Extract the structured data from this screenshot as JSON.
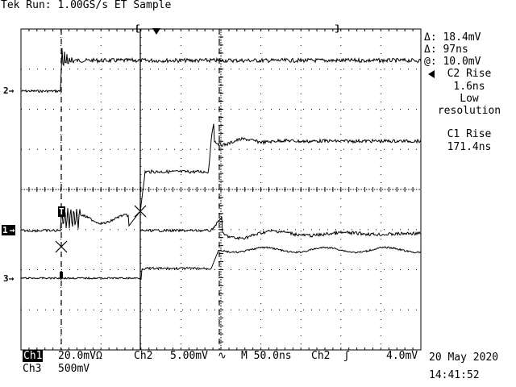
{
  "header": {
    "status": "Tek Run: 1.00GS/s ET Sample"
  },
  "markers": {
    "ch2": "2",
    "ch1": "1",
    "ch3": "3",
    "trigger": "T"
  },
  "measurements": {
    "delta_v": "Δ: 18.4mV",
    "delta_t": "Δ: 97ns",
    "at_v": "@: 10.0mV",
    "c2_rise_label": "C2 Rise",
    "c2_rise_value": "1.6ns",
    "c2_note_line1": "Low",
    "c2_note_line2": "resolution",
    "c1_rise_label": "C1 Rise",
    "c1_rise_value": "171.4ns"
  },
  "footer": {
    "ch1_label": "Ch1",
    "ch1_scale": "20.0mVΩ",
    "ch2_label": "Ch2",
    "ch2_scale": "5.00mV",
    "ch2_bw": "∿",
    "timebase": "M 50.0ns",
    "trig_label": "Ch2",
    "trig_slope": "ʃ",
    "trig_level": "4.0mV",
    "ch3_label": "Ch3",
    "ch3_scale": "500mV",
    "date": "20 May 2020",
    "time": "14:41:52"
  },
  "colors": {
    "background": "#ffffff",
    "trace": "#000000",
    "graticule": "#000000"
  }
}
